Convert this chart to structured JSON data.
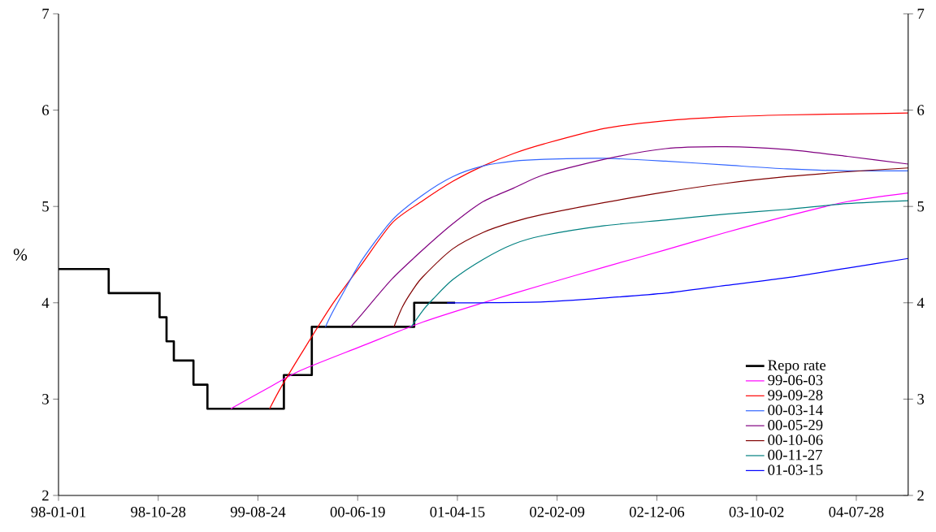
{
  "chart_data": {
    "type": "line",
    "ylabel": "%",
    "legend": "bottom right",
    "xlim": [
      "1998-01-01",
      "2004-12-31"
    ],
    "xticks": [
      {
        "value": "1998-01-01",
        "label": "98-01-01"
      },
      {
        "value": "1998-10-28",
        "label": "98-10-28"
      },
      {
        "value": "1999-08-24",
        "label": "99-08-24"
      },
      {
        "value": "2000-06-19",
        "label": "00-06-19"
      },
      {
        "value": "2001-04-15",
        "label": "01-04-15"
      },
      {
        "value": "2002-02-09",
        "label": "02-02-09"
      },
      {
        "value": "2002-12-06",
        "label": "02-12-06"
      },
      {
        "value": "2003-10-02",
        "label": "03-10-02"
      },
      {
        "value": "2004-07-28",
        "label": "04-07-28"
      }
    ],
    "ylim": [
      2,
      7
    ],
    "yticks": [
      2,
      3,
      4,
      5,
      6,
      7
    ],
    "y2lim": [
      2,
      7
    ],
    "y2ticks": [
      2,
      3,
      4,
      5,
      6,
      7
    ],
    "series": [
      {
        "name": "Repo rate",
        "type": "step",
        "color": "#000000",
        "x": [
          "1998-01-01",
          "1998-06-01",
          "1998-11-01",
          "1998-11-22",
          "1998-12-14",
          "1999-02-11",
          "1999-03-25",
          "1999-11-10",
          "2000-02-02",
          "2000-12-06",
          "2001-04-08"
        ],
        "values": [
          4.35,
          4.1,
          3.85,
          3.6,
          3.4,
          3.15,
          2.9,
          3.25,
          3.75,
          4.0,
          4.0
        ]
      },
      {
        "name": "99-06-03",
        "color": "#ff00ff",
        "x": [
          "1999-06-03",
          "1999-10-01",
          "2000-01-01",
          "2000-07-01",
          "2001-01-01",
          "2001-07-01",
          "2002-01-01",
          "2002-07-01",
          "2003-01-01",
          "2003-07-01",
          "2004-01-01",
          "2004-07-01",
          "2004-12-31"
        ],
        "values": [
          2.9,
          3.13,
          3.3,
          3.55,
          3.8,
          4.0,
          4.19,
          4.37,
          4.55,
          4.73,
          4.9,
          5.05,
          5.14
        ]
      },
      {
        "name": "99-09-28",
        "color": "#ff0000",
        "x": [
          "1999-09-28",
          "1999-11-01",
          "2000-01-01",
          "2000-04-01",
          "2000-07-01",
          "2000-10-01",
          "2001-01-01",
          "2001-04-01",
          "2001-07-01",
          "2001-10-01",
          "2002-01-01",
          "2002-07-01",
          "2003-01-01",
          "2003-07-01",
          "2004-01-01",
          "2004-07-01",
          "2004-12-31"
        ],
        "values": [
          2.9,
          3.12,
          3.47,
          3.97,
          4.4,
          4.83,
          5.06,
          5.26,
          5.42,
          5.55,
          5.65,
          5.81,
          5.89,
          5.93,
          5.95,
          5.96,
          5.97
        ]
      },
      {
        "name": "00-03-14",
        "color": "#3366ff",
        "x": [
          "2000-03-14",
          "2000-04-01",
          "2000-05-01",
          "2000-07-01",
          "2000-10-01",
          "2001-01-01",
          "2001-04-01",
          "2001-07-01",
          "2001-10-01",
          "2002-01-01",
          "2002-07-01",
          "2003-01-01",
          "2003-07-01",
          "2004-01-01",
          "2004-07-01",
          "2004-12-31"
        ],
        "values": [
          3.75,
          3.88,
          4.07,
          4.44,
          4.86,
          5.12,
          5.31,
          5.42,
          5.47,
          5.49,
          5.5,
          5.47,
          5.43,
          5.39,
          5.37,
          5.37
        ]
      },
      {
        "name": "00-05-29",
        "color": "#800080",
        "x": [
          "2000-05-29",
          "2000-07-01",
          "2000-10-01",
          "2001-01-01",
          "2001-04-01",
          "2001-07-01",
          "2001-10-01",
          "2002-01-01",
          "2002-07-01",
          "2003-01-01",
          "2003-07-01",
          "2004-01-01",
          "2004-07-01",
          "2004-12-31"
        ],
        "values": [
          3.75,
          3.88,
          4.25,
          4.55,
          4.82,
          5.05,
          5.19,
          5.33,
          5.49,
          5.6,
          5.62,
          5.59,
          5.52,
          5.44
        ]
      },
      {
        "name": "00-10-06",
        "color": "#800000",
        "x": [
          "2000-10-06",
          "2000-11-01",
          "2000-12-01",
          "2001-01-01",
          "2001-04-01",
          "2001-07-01",
          "2001-10-01",
          "2002-01-01",
          "2002-07-01",
          "2003-01-01",
          "2003-07-01",
          "2004-01-01",
          "2004-07-01",
          "2004-12-31"
        ],
        "values": [
          3.75,
          3.96,
          4.13,
          4.27,
          4.56,
          4.73,
          4.84,
          4.92,
          5.04,
          5.15,
          5.24,
          5.31,
          5.36,
          5.4
        ]
      },
      {
        "name": "00-11-27",
        "color": "#008080",
        "x": [
          "2000-11-27",
          "2001-01-01",
          "2001-02-01",
          "2001-04-01",
          "2001-07-01",
          "2001-10-01",
          "2002-01-01",
          "2002-07-01",
          "2003-01-01",
          "2003-07-01",
          "2004-01-01",
          "2004-07-01",
          "2004-12-31"
        ],
        "values": [
          3.75,
          3.92,
          4.04,
          4.24,
          4.45,
          4.61,
          4.7,
          4.8,
          4.86,
          4.92,
          4.97,
          5.03,
          5.06
        ]
      },
      {
        "name": "01-03-15",
        "color": "#0000ff",
        "x": [
          "2001-03-15",
          "2001-07-01",
          "2002-01-01",
          "2002-07-01",
          "2003-01-01",
          "2003-07-01",
          "2004-01-01",
          "2004-07-01",
          "2004-12-31"
        ],
        "values": [
          4.0,
          4.0,
          4.01,
          4.05,
          4.1,
          4.18,
          4.26,
          4.36,
          4.46
        ]
      }
    ]
  }
}
